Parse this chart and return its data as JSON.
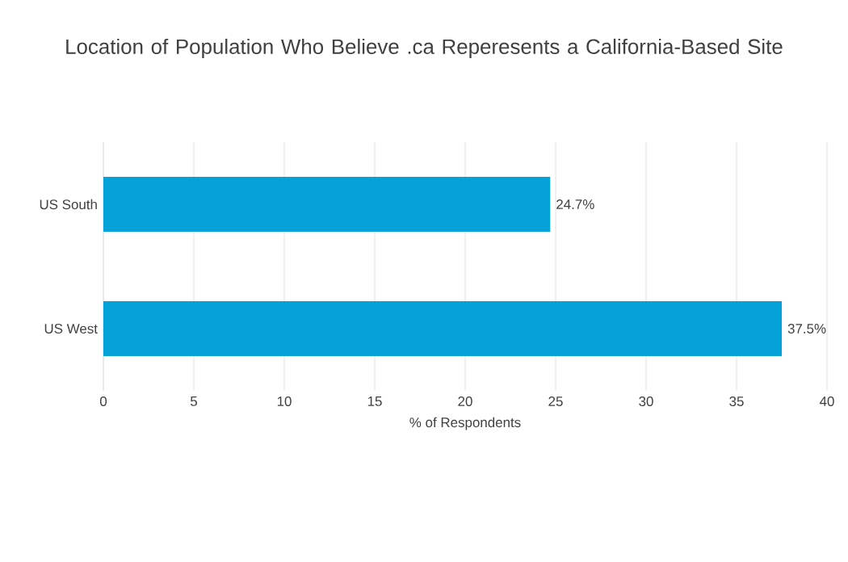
{
  "chart_data": {
    "type": "bar",
    "orientation": "horizontal",
    "title": "Location of Population Who Believe .ca Reperesents a California-Based Site",
    "xlabel": "% of Respondents",
    "categories": [
      "US South",
      "US West"
    ],
    "values": [
      24.7,
      37.5
    ],
    "value_labels": [
      "24.7%",
      "37.5%"
    ],
    "color": "#05a2d9",
    "xlim": [
      0,
      40
    ],
    "xticks": [
      0,
      5,
      10,
      15,
      20,
      25,
      30,
      35,
      40
    ],
    "grid": "x"
  }
}
